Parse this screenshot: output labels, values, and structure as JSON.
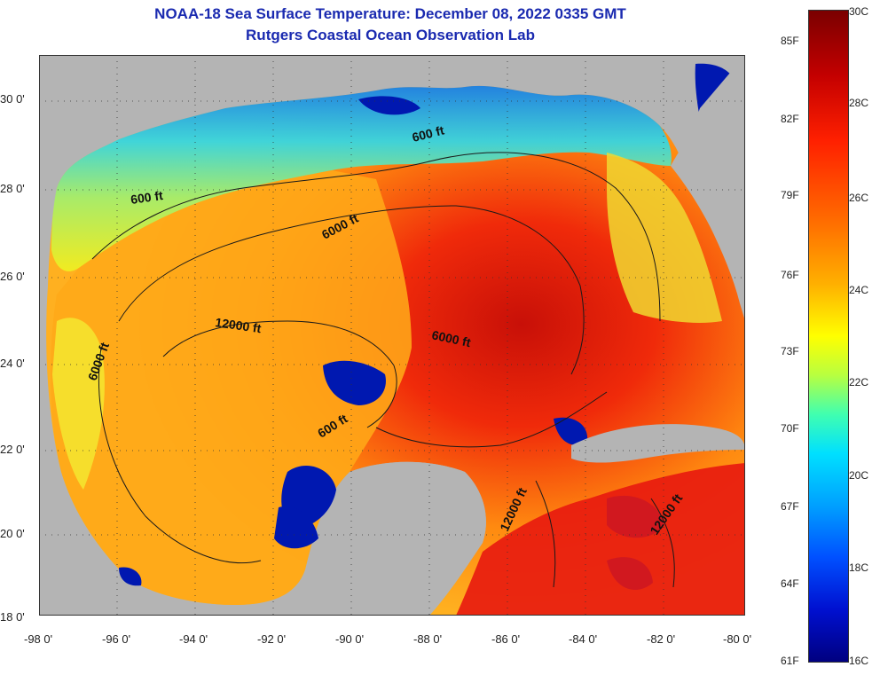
{
  "title": "NOAA-18 Sea Surface Temperature:  December 08, 2022 0335 GMT",
  "subtitle": "Rutgers Coastal Ocean Observation Lab",
  "lat_labels": [
    "30 0'",
    "28 0'",
    "26 0'",
    "24 0'",
    "22 0'",
    "20 0'",
    "18 0'"
  ],
  "lon_labels": [
    "-98 0'",
    "-96 0'",
    "-94 0'",
    "-92 0'",
    "-90 0'",
    "-88 0'",
    "-86 0'",
    "-84 0'",
    "-82 0'",
    "-80 0'"
  ],
  "contours": [
    "600 ft",
    "6000 ft",
    "600 ft",
    "12000 ft",
    "6000 ft",
    "6000 ft",
    "600 ft",
    "12000 ft",
    "12000 ft"
  ],
  "colorbar": {
    "celsius": [
      "30C",
      "28C",
      "26C",
      "24C",
      "22C",
      "20C",
      "18C",
      "16C"
    ],
    "fahrenheit": [
      "85F",
      "82F",
      "79F",
      "76F",
      "73F",
      "70F",
      "67F",
      "64F",
      "61F"
    ]
  },
  "colors": {
    "land": "#b4b4b4",
    "warm": "#e8140a",
    "mid": "#ff9a10",
    "cool": "#2ad0e0",
    "cloud": "#0018b0"
  }
}
